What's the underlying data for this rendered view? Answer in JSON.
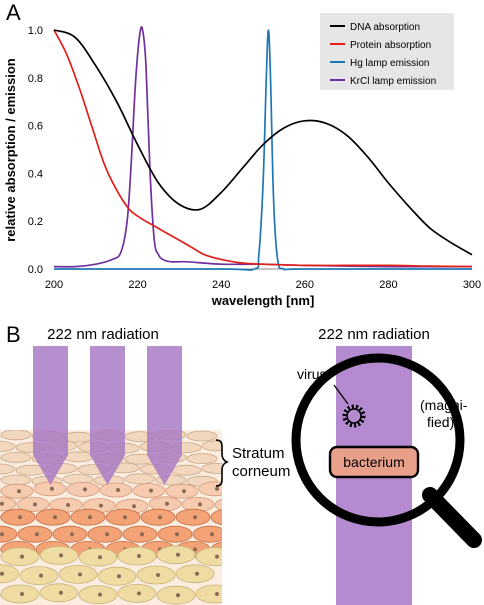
{
  "panels": {
    "a_label": "A",
    "b_label": "B"
  },
  "chart_data": {
    "type": "line",
    "xlabel": "wavelength [nm]",
    "ylabel": "relative absorption / emission",
    "xlim": [
      200,
      300
    ],
    "ylim": [
      0,
      1.0
    ],
    "x_ticks": [
      "200",
      "220",
      "240",
      "260",
      "280",
      "300"
    ],
    "y_ticks": [
      "0.0",
      "0.2",
      "0.4",
      "0.6",
      "0.8",
      "1.0"
    ],
    "grid": false,
    "legend": "top-right",
    "series": [
      {
        "name": "DNA absorption",
        "color": "#000000",
        "x": [
          200,
          205,
          210,
          215,
          220,
          225,
          230,
          235,
          240,
          245,
          250,
          255,
          260,
          265,
          270,
          275,
          280,
          285,
          290,
          295,
          300
        ],
        "y": [
          1.0,
          0.97,
          0.85,
          0.7,
          0.52,
          0.36,
          0.27,
          0.25,
          0.32,
          0.42,
          0.52,
          0.59,
          0.62,
          0.61,
          0.56,
          0.47,
          0.36,
          0.26,
          0.17,
          0.11,
          0.06
        ]
      },
      {
        "name": "Protein absorption",
        "color": "#e0201b",
        "x": [
          200,
          203,
          206,
          209,
          212,
          215,
          218,
          221,
          224,
          227,
          230,
          233,
          236,
          240,
          245,
          250,
          260,
          270,
          280,
          290,
          300
        ],
        "y": [
          1.0,
          0.9,
          0.76,
          0.6,
          0.44,
          0.33,
          0.25,
          0.21,
          0.18,
          0.15,
          0.12,
          0.09,
          0.06,
          0.04,
          0.025,
          0.02,
          0.015,
          0.015,
          0.015,
          0.012,
          0.01
        ]
      },
      {
        "name": "Hg lamp emission",
        "color": "#1f77b4",
        "x": [
          200,
          240,
          248,
          249,
          250,
          250.8,
          251.3,
          251.8,
          252.5,
          253.5,
          255,
          260,
          300
        ],
        "y": [
          0.0,
          0.0,
          0.0,
          0.06,
          0.35,
          0.8,
          1.0,
          0.8,
          0.3,
          0.04,
          0.0,
          0.0,
          0.0
        ],
        "y2": [
          0.0,
          0.0,
          0.0,
          0.06,
          0.35,
          0.8,
          1.0,
          0.8,
          0.3,
          0.04,
          0.0,
          0.0,
          0.0
        ]
      },
      {
        "name": "KrCl lamp emission",
        "color": "#7030a0",
        "x": [
          200,
          205,
          210,
          214,
          216,
          217.5,
          218.5,
          219.5,
          220.5,
          221.2,
          222,
          223,
          224,
          225,
          226,
          228,
          232,
          240,
          250,
          260,
          280,
          300
        ],
        "y": [
          0.01,
          0.01,
          0.02,
          0.04,
          0.07,
          0.2,
          0.45,
          0.78,
          0.98,
          1.0,
          0.85,
          0.4,
          0.12,
          0.06,
          0.04,
          0.03,
          0.03,
          0.02,
          0.02,
          0.015,
          0.01,
          0.01
        ]
      }
    ]
  },
  "diagram": {
    "left_radiation_label": "222 nm radiation",
    "right_radiation_label": "222 nm radiation",
    "stratum_label_line1": "Stratum",
    "stratum_label_line2": "corneum",
    "virus_label": "virus",
    "magnified_line1": "(magni-",
    "magnified_line2": "fied)",
    "bacterium_label": "bacterium"
  },
  "colors": {
    "radiation": "#a97cc6",
    "skin_top": "#f3dcc0",
    "skin_mid": "#f4a37a",
    "skin_low": "#eedaa0",
    "bacterium": "#e8a08a"
  }
}
